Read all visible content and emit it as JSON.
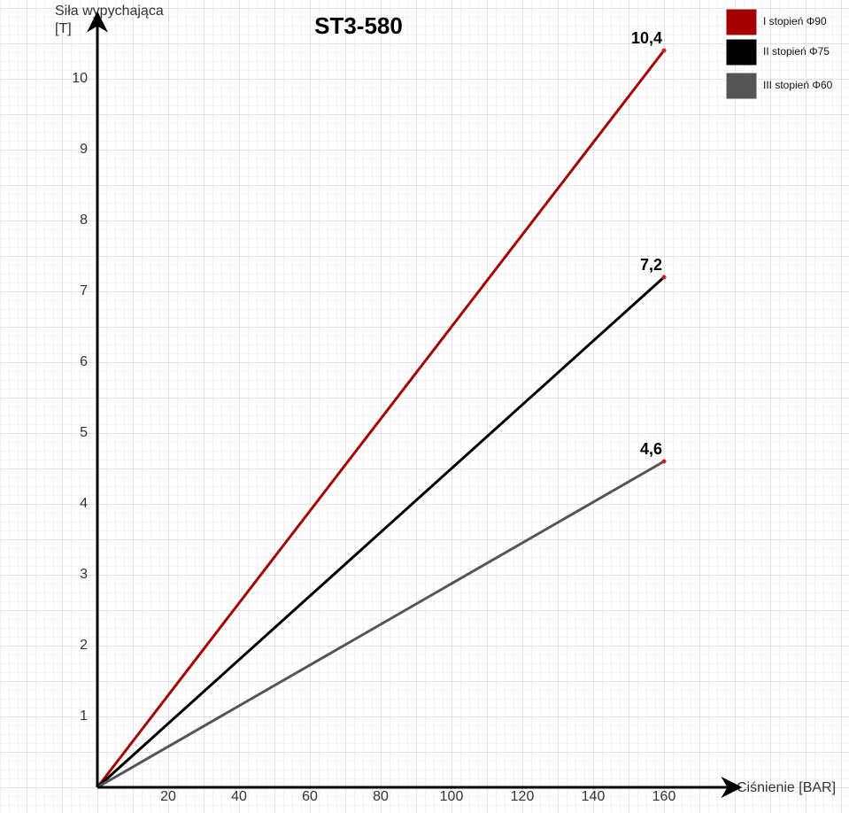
{
  "chart_data": {
    "type": "line",
    "title": "ST3-580",
    "x_label": "Ciśnienie [BAR]",
    "y_label": [
      "Siła wypychająca",
      "[T]"
    ],
    "x": [
      0,
      160
    ],
    "series": [
      {
        "name": "I stopień Φ90",
        "color": "#a50000",
        "values": [
          0,
          10.4
        ],
        "value_labels": [
          null,
          "10,4"
        ]
      },
      {
        "name": "II stopień Φ75",
        "color": "#000000",
        "values": [
          0,
          7.2
        ],
        "value_labels": [
          null,
          "7,2"
        ]
      },
      {
        "name": "III stopień Φ60",
        "color": "#555555",
        "values": [
          0,
          4.6
        ],
        "value_labels": [
          null,
          "4,6"
        ]
      }
    ],
    "marker_color": "#cc2222",
    "xlim": [
      0,
      179
    ],
    "ylim": [
      0,
      10.8
    ],
    "xticks": [
      20,
      40,
      60,
      80,
      100,
      120,
      140,
      160
    ],
    "yticks": [
      1,
      2,
      3,
      4,
      5,
      6,
      7,
      8,
      9,
      10
    ],
    "legend": "top-right"
  }
}
